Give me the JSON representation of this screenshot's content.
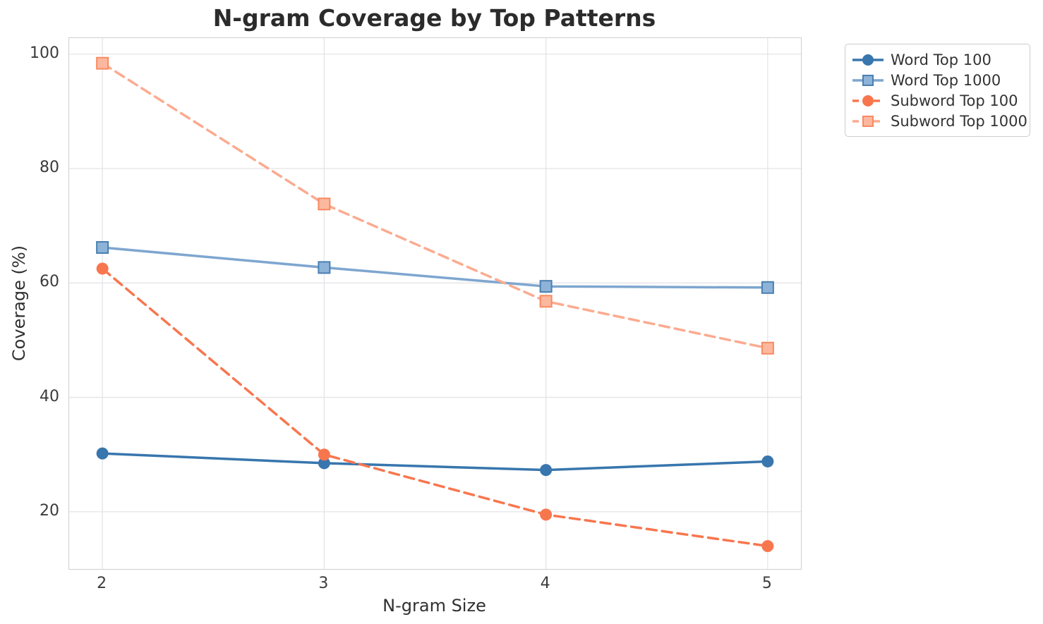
{
  "chart_data": {
    "type": "line",
    "title": "N-gram Coverage by Top Patterns",
    "xlabel": "N-gram Size",
    "ylabel": "Coverage (%)",
    "x": [
      2,
      3,
      4,
      5
    ],
    "xtick_labels": [
      "2",
      "3",
      "4",
      "5"
    ],
    "ytick_values": [
      20,
      40,
      60,
      80,
      100
    ],
    "ytick_labels": [
      "20",
      "40",
      "60",
      "80",
      "100"
    ],
    "xlim": [
      1.85,
      5.15
    ],
    "ylim": [
      10.0,
      102.8
    ],
    "grid": true,
    "legend_position": "outside-upper-right",
    "series": [
      {
        "name": "Word Top 100",
        "values": [
          30.2,
          28.5,
          27.3,
          28.8
        ],
        "color": "#3876ad",
        "marker": "circle",
        "marker_fill": "#3876ad",
        "marker_edge": "#3876ad",
        "line_style": "solid"
      },
      {
        "name": "Word Top 1000",
        "values": [
          66.2,
          62.7,
          59.4,
          59.2
        ],
        "color": "#7ea6cf",
        "marker": "square",
        "marker_fill": "#8db3d8",
        "marker_edge": "#4a7fb0",
        "line_style": "solid"
      },
      {
        "name": "Subword Top 100",
        "values": [
          62.5,
          30.0,
          19.5,
          14.0
        ],
        "color": "#f8764e",
        "marker": "circle",
        "marker_fill": "#f8764e",
        "marker_edge": "#f8764e",
        "line_style": "dashed"
      },
      {
        "name": "Subword Top 1000",
        "values": [
          98.4,
          73.8,
          56.8,
          48.6
        ],
        "color": "#fbab90",
        "marker": "square",
        "marker_fill": "#fcb89f",
        "marker_edge": "#f98a61",
        "line_style": "dashed"
      }
    ]
  },
  "style_colors": {
    "grid": "#e4e4e8",
    "spine": "#cfcfcf",
    "tick_text": "#3b3b3b",
    "title_text": "#2b2b2b"
  }
}
